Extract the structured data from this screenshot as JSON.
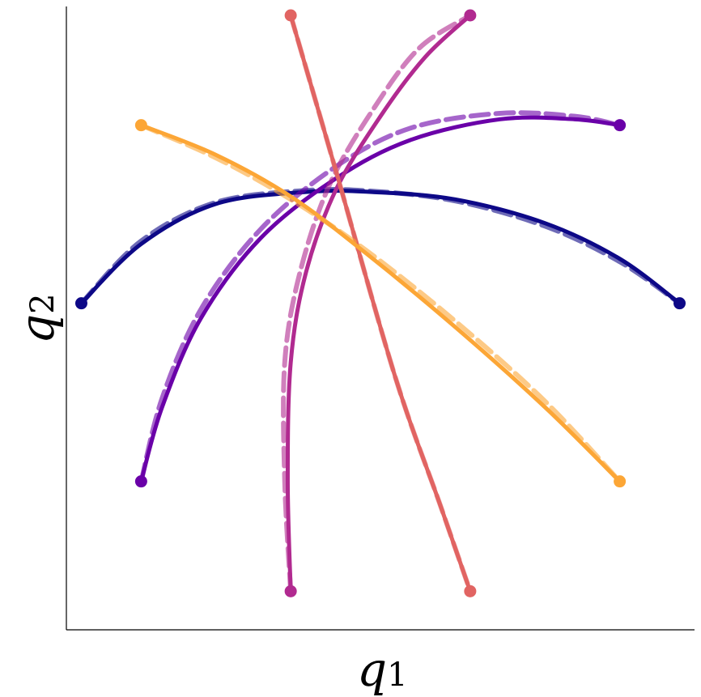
{
  "chart_data": {
    "type": "line",
    "title": "",
    "xlabel": "q",
    "xlabel_sub": "1",
    "ylabel": "q",
    "ylabel_sub": "2",
    "xlim": [
      -1.1,
      1.0
    ],
    "ylim": [
      -1.1,
      1.0
    ],
    "ticks_shown": false,
    "grid": false,
    "legend": "none",
    "styles": {
      "predicted": "solid",
      "reference": "dashed"
    },
    "series": [
      {
        "color": "#0d0887",
        "x": [
          -1.05,
          -0.85,
          -0.6,
          -0.3,
          -0.08,
          0.2,
          0.5,
          0.75,
          0.95
        ],
        "y": [
          0.0,
          0.2,
          0.335,
          0.375,
          0.375,
          0.35,
          0.27,
          0.15,
          0.0
        ],
        "reference_x": [
          -1.05,
          -0.85,
          -0.6,
          -0.3,
          -0.08,
          0.2,
          0.5,
          0.75,
          0.95
        ],
        "reference_y": [
          0.0,
          0.21,
          0.34,
          0.38,
          0.378,
          0.345,
          0.26,
          0.14,
          0.0
        ]
      },
      {
        "color": "#6a00a8",
        "x": [
          -0.85,
          -0.78,
          -0.65,
          -0.45,
          -0.2,
          0.05,
          0.35,
          0.6,
          0.75
        ],
        "y": [
          -0.6,
          -0.35,
          -0.05,
          0.22,
          0.42,
          0.55,
          0.62,
          0.62,
          0.6
        ],
        "reference_x": [
          -0.85,
          -0.78,
          -0.65,
          -0.45,
          -0.2,
          0.05,
          0.35,
          0.6,
          0.75
        ],
        "reference_y": [
          -0.6,
          -0.32,
          -0.02,
          0.25,
          0.46,
          0.59,
          0.64,
          0.63,
          0.6
        ]
      },
      {
        "color": "#b12a90",
        "x": [
          -0.35,
          -0.36,
          -0.35,
          -0.3,
          -0.2,
          -0.05,
          0.1,
          0.25
        ],
        "y": [
          -0.97,
          -0.6,
          -0.2,
          0.1,
          0.38,
          0.63,
          0.83,
          0.97
        ],
        "reference_x": [
          -0.35,
          -0.37,
          -0.37,
          -0.32,
          -0.22,
          -0.07,
          0.08,
          0.25
        ],
        "reference_y": [
          -0.97,
          -0.6,
          -0.2,
          0.1,
          0.4,
          0.66,
          0.86,
          0.97
        ]
      },
      {
        "color": "#e16462",
        "x": [
          -0.35,
          -0.2,
          0.0,
          0.15,
          0.25
        ],
        "y": [
          0.97,
          0.45,
          -0.25,
          -0.68,
          -0.97
        ],
        "reference_x": [
          -0.35,
          -0.2,
          0.0,
          0.15,
          0.25
        ],
        "reference_y": [
          0.97,
          0.45,
          -0.25,
          -0.68,
          -0.97
        ]
      },
      {
        "color": "#fca636",
        "x": [
          -0.85,
          -0.6,
          -0.35,
          -0.1,
          0.2,
          0.5,
          0.75
        ],
        "y": [
          0.6,
          0.5,
          0.36,
          0.17,
          -0.08,
          -0.35,
          -0.6
        ],
        "reference_x": [
          -0.85,
          -0.6,
          -0.35,
          -0.1,
          0.2,
          0.5,
          0.75
        ],
        "reference_y": [
          0.6,
          0.49,
          0.35,
          0.18,
          -0.06,
          -0.33,
          -0.6
        ]
      }
    ]
  }
}
